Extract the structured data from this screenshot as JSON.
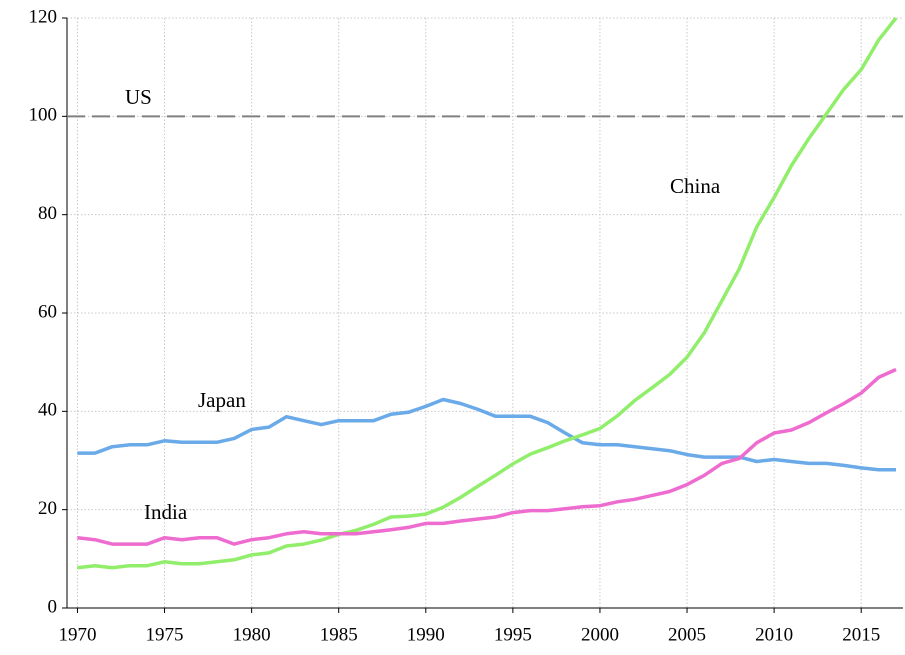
{
  "chart_data": {
    "type": "line",
    "x": [
      1970,
      1971,
      1972,
      1973,
      1974,
      1975,
      1976,
      1977,
      1978,
      1979,
      1980,
      1981,
      1982,
      1983,
      1984,
      1985,
      1986,
      1987,
      1988,
      1989,
      1990,
      1991,
      1992,
      1993,
      1994,
      1995,
      1996,
      1997,
      1998,
      1999,
      2000,
      2001,
      2002,
      2003,
      2004,
      2005,
      2006,
      2007,
      2008,
      2009,
      2010,
      2011,
      2012,
      2013,
      2014,
      2015,
      2016,
      2017
    ],
    "series": [
      {
        "name": "Japan",
        "color": "#6aaae8",
        "values": [
          31.5,
          31.5,
          32.8,
          33.2,
          33.2,
          34.0,
          33.7,
          33.7,
          33.7,
          34.5,
          36.3,
          36.8,
          38.9,
          38.1,
          37.3,
          38.1,
          38.1,
          38.1,
          39.4,
          39.8,
          41.0,
          42.4,
          41.6,
          40.4,
          39.0,
          39.0,
          39.0,
          37.7,
          35.6,
          33.6,
          33.2,
          33.2,
          32.8,
          32.4,
          32.0,
          31.2,
          30.7,
          30.7,
          30.7,
          29.8,
          30.2,
          29.8,
          29.4,
          29.4,
          29.0,
          28.5,
          28.1,
          28.1
        ]
      },
      {
        "name": "China",
        "color": "#90ee6a",
        "values": [
          8.2,
          8.6,
          8.2,
          8.6,
          8.6,
          9.4,
          9.0,
          9.0,
          9.4,
          9.8,
          10.8,
          11.2,
          12.6,
          13.0,
          13.8,
          15.0,
          15.8,
          17.0,
          18.5,
          18.7,
          19.1,
          20.5,
          22.5,
          24.8,
          27.0,
          29.3,
          31.3,
          32.6,
          34.0,
          35.2,
          36.5,
          39.1,
          42.2,
          44.8,
          47.5,
          51.0,
          56.0,
          62.5,
          69.0,
          77.5,
          83.5,
          90.0,
          95.5,
          100.5,
          105.5,
          109.5,
          115.5,
          120
        ]
      },
      {
        "name": "India",
        "color": "#ee6ccf",
        "values": [
          14.3,
          13.9,
          13.0,
          13.0,
          13.0,
          14.3,
          13.9,
          14.3,
          14.3,
          13.0,
          13.9,
          14.3,
          15.1,
          15.5,
          15.1,
          15.1,
          15.1,
          15.5,
          15.9,
          16.4,
          17.2,
          17.2,
          17.7,
          18.1,
          18.5,
          19.4,
          19.8,
          19.8,
          20.2,
          20.6,
          20.8,
          21.6,
          22.1,
          22.9,
          23.7,
          25.1,
          27.0,
          29.4,
          30.4,
          33.6,
          35.6,
          36.2,
          37.7,
          39.7,
          41.6,
          43.7,
          46.9,
          48.5
        ]
      }
    ],
    "reference_line": {
      "label": "US",
      "value": 100,
      "color": "#808080"
    },
    "xlim": [
      1969.4,
      2017.4
    ],
    "xticks": [
      1970,
      1975,
      1980,
      1985,
      1990,
      1995,
      2000,
      2005,
      2010,
      2015
    ],
    "ylim": [
      0,
      120
    ],
    "yticks": [
      0,
      20,
      40,
      60,
      80,
      100,
      120
    ],
    "grid": true
  }
}
